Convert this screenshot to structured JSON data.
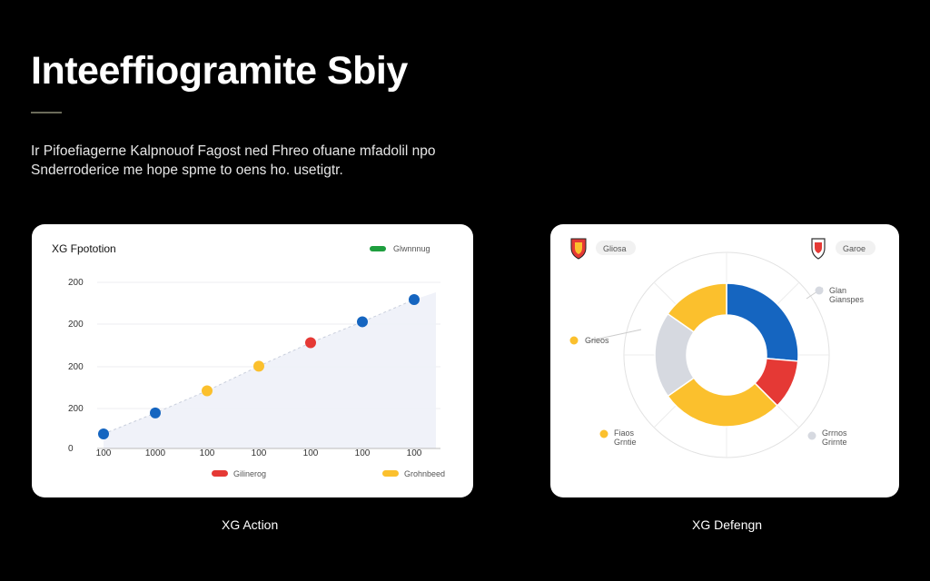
{
  "header": {
    "title": "Inteeffiogramitе Sbiy",
    "subtitle_line1": "Ir Pifoefiagerne Kalpnouof Fagost ned Fhreo ofuane mfadolil npo",
    "subtitle_line2": "Snderroderice me hope spme to oens ho. usetigtr."
  },
  "captions": {
    "left": "XG Action",
    "right": "XG Defengn"
  },
  "colors": {
    "background": "#000000",
    "blue": "#1565c0",
    "red": "#e53935",
    "yellow": "#fbc02d",
    "green": "#1e9e3e",
    "gray": "#d6d9e0"
  },
  "chart_data": [
    {
      "type": "scatter",
      "title": "XG Fpototion",
      "legend": [
        {
          "name": "Glwnnnug",
          "color": "#1e9e3e",
          "position": "top-right"
        },
        {
          "name": "Gilinerog",
          "color": "#e53935",
          "position": "bottom"
        },
        {
          "name": "Grohnbeed",
          "color": "#fbc02d",
          "position": "bottom"
        }
      ],
      "y_tick_labels": [
        "200",
        "200",
        "200",
        "200",
        "0"
      ],
      "x_tick_labels": [
        "100",
        "1000",
        "100",
        "100",
        "100",
        "100",
        "100"
      ],
      "ylim": [
        0,
        200
      ],
      "grid": true,
      "points": [
        {
          "x": 0,
          "y": 10,
          "color": "#1565c0"
        },
        {
          "x": 1,
          "y": 27,
          "color": "#1565c0"
        },
        {
          "x": 2,
          "y": 45,
          "color": "#fbc02d"
        },
        {
          "x": 3,
          "y": 65,
          "color": "#fbc02d"
        },
        {
          "x": 4,
          "y": 84,
          "color": "#e53935"
        },
        {
          "x": 5,
          "y": 101,
          "color": "#1565c0"
        },
        {
          "x": 6,
          "y": 119,
          "color": "#1565c0"
        }
      ]
    },
    {
      "type": "pie",
      "donut": true,
      "header_labels": [
        "Gliosa",
        "Garoe"
      ],
      "slices": [
        {
          "color": "#1565c0",
          "start_deg": 0,
          "value": 95
        },
        {
          "color": "#e53935",
          "start_deg": 95,
          "value": 40
        },
        {
          "color": "#fbc02d",
          "start_deg": 135,
          "value": 100
        },
        {
          "color": "#d6d9e0",
          "start_deg": 235,
          "value": 70
        },
        {
          "color": "#fbc02d",
          "start_deg": 305,
          "value": 55
        }
      ],
      "annotations": [
        {
          "line1": "Grieos",
          "line2": "",
          "color": "#fbc02d"
        },
        {
          "line1": "Glan",
          "line2": "Gianspes",
          "color": "#d6d9e0"
        },
        {
          "line1": "Fiaos",
          "line2": "Grntie",
          "color": "#fbc02d"
        },
        {
          "line1": "Grrnos",
          "line2": "Grirnte",
          "color": "#d6d9e0"
        }
      ]
    }
  ]
}
